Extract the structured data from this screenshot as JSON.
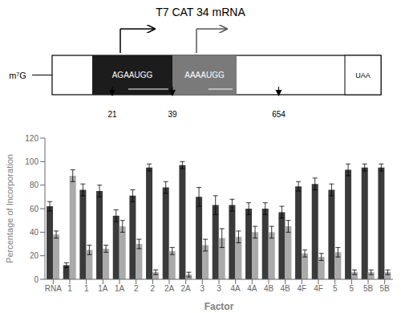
{
  "chart_data": {
    "type": "bar",
    "title": "T7 CAT 34 mRNA",
    "xlabel": "Factor",
    "ylabel": "Percentage of Incorporation",
    "annotations": [
      "AGAAUGG",
      "AAAAUGG",
      "UAA",
      "m⁷G",
      "21",
      "39",
      "654"
    ],
    "categories": [
      "RNA",
      "1",
      "1",
      "1A",
      "1A",
      "2",
      "2",
      "2A",
      "2A",
      "3",
      "3",
      "4A",
      "4A",
      "4B",
      "4B",
      "4F",
      "4F",
      "5",
      "5",
      "5B",
      "5B"
    ],
    "series": [
      {
        "color": "#3a3a3a",
        "values": [
          62,
          12,
          76,
          75,
          54,
          71,
          95,
          78,
          97,
          70,
          63,
          63,
          60,
          60,
          57,
          79,
          81,
          76,
          93,
          95,
          95
        ],
        "errors": [
          4,
          2,
          5,
          5,
          5,
          5,
          3,
          5,
          3,
          8,
          8,
          5,
          5,
          5,
          5,
          4,
          5,
          5,
          5,
          3,
          3
        ]
      },
      {
        "color": "#aaaaaa",
        "values": [
          38,
          88,
          25,
          26,
          45,
          30,
          6,
          24,
          4,
          29,
          35,
          36,
          40,
          40,
          45,
          22,
          19,
          23,
          6,
          6,
          6
        ],
        "errors": [
          3,
          5,
          4,
          3,
          5,
          4,
          2,
          3,
          2,
          5,
          8,
          5,
          5,
          5,
          5,
          3,
          3,
          4,
          2,
          2,
          2
        ]
      }
    ],
    "ylim": [
      0,
      120
    ],
    "yticks": [
      0,
      20,
      40,
      60,
      80,
      100,
      120
    ],
    "grid": false
  }
}
